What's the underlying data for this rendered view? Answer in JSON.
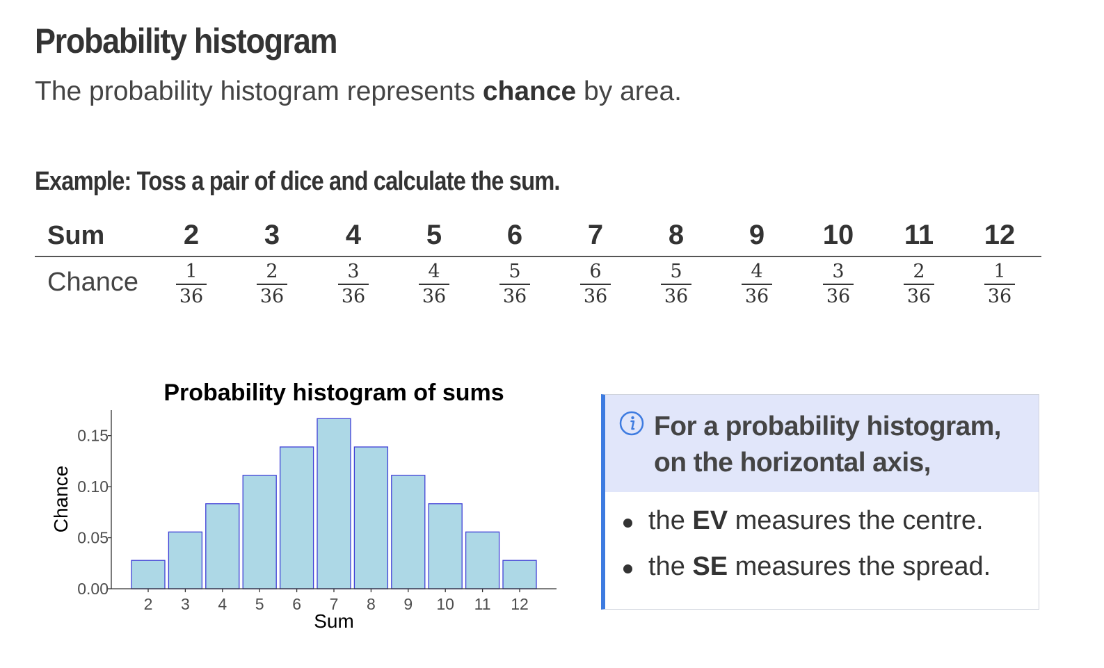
{
  "title": "Probability histogram",
  "intro": {
    "before": "The probability histogram represents ",
    "bold": "chance",
    "after": " by area."
  },
  "example_heading": "Example: Toss a pair of dice and calculate the sum.",
  "table": {
    "sum_label": "Sum",
    "chance_label": "Chance",
    "sums": [
      "2",
      "3",
      "4",
      "5",
      "6",
      "7",
      "8",
      "9",
      "10",
      "11",
      "12"
    ],
    "numerators": [
      "1",
      "2",
      "3",
      "4",
      "5",
      "6",
      "5",
      "4",
      "3",
      "2",
      "1"
    ],
    "denominator": "36"
  },
  "chart_data": {
    "type": "bar",
    "title": "Probability histogram of sums",
    "xlabel": "Sum",
    "ylabel": "Chance",
    "categories": [
      "2",
      "3",
      "4",
      "5",
      "6",
      "7",
      "8",
      "9",
      "10",
      "11",
      "12"
    ],
    "values": [
      0.0278,
      0.0556,
      0.0833,
      0.1111,
      0.1389,
      0.1667,
      0.1389,
      0.1111,
      0.0833,
      0.0556,
      0.0278
    ],
    "yticks": [
      "0.00",
      "0.05",
      "0.10",
      "0.15"
    ],
    "ylim": [
      0,
      0.175
    ],
    "grid": false,
    "bar_fill": "#add8e6",
    "bar_stroke": "#3f3fd6"
  },
  "info": {
    "icon": "info-icon",
    "title": "For a probability histogram, on the horizontal axis,",
    "items": [
      {
        "before": "the ",
        "bold": "EV",
        "after": " measures the centre."
      },
      {
        "before": "the ",
        "bold": "SE",
        "after": " measures the spread."
      }
    ],
    "accent_color": "#3d7be0",
    "header_bg": "#e1e6fa"
  }
}
